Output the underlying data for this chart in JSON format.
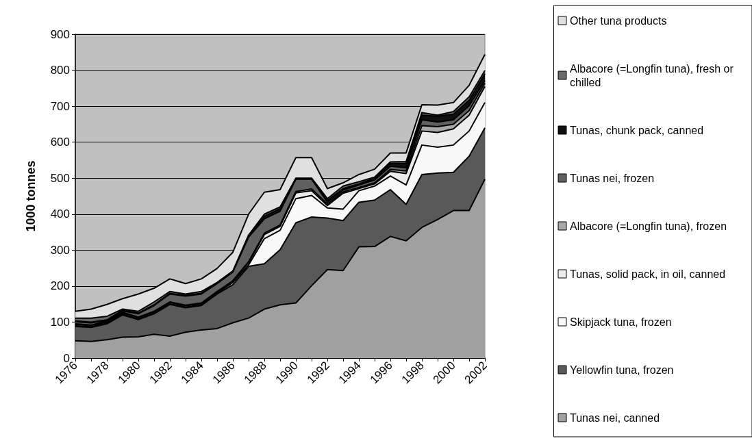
{
  "chart_data": {
    "type": "area",
    "stacked": true,
    "ylabel": "1000 tonnes",
    "categories": [
      "1976",
      null,
      "1978",
      null,
      "1980",
      null,
      "1982",
      null,
      "1984",
      null,
      "1986",
      null,
      "1988",
      null,
      "1990",
      null,
      "1992",
      null,
      "1994",
      null,
      "1996",
      null,
      "1998",
      null,
      "2000",
      null,
      "2002"
    ],
    "series": [
      {
        "name": "Tunas nei, canned",
        "color": "#a0a0a0",
        "values": [
          48,
          46,
          51,
          58,
          59,
          66,
          61,
          72,
          78,
          82,
          98,
          111,
          136,
          148,
          153,
          201,
          246,
          243,
          309,
          310,
          338,
          326,
          363,
          385,
          410,
          410,
          497
        ]
      },
      {
        "name": "Yellowfin tuna, frozen",
        "color": "#595959",
        "values": [
          40,
          39,
          44,
          62,
          48,
          57,
          88,
          68,
          68,
          96,
          106,
          144,
          126,
          153,
          223,
          191,
          143,
          139,
          124,
          129,
          130,
          101,
          147,
          129,
          106,
          151,
          143
        ]
      },
      {
        "name": "Skipjack tuna, frozen",
        "color": "#f8f8f8",
        "values": [
          2,
          2,
          2,
          2,
          2,
          2,
          2,
          2,
          2,
          2,
          6,
          4,
          70,
          54,
          67,
          60,
          28,
          32,
          32,
          39,
          38,
          54,
          82,
          72,
          76,
          70,
          70
        ]
      },
      {
        "name": "Tunas, solid pack, in oil, canned",
        "color": "#ececec",
        "values": [
          3,
          3,
          3,
          3,
          3,
          3,
          3,
          3,
          3,
          3,
          3,
          6,
          11,
          11,
          16,
          13,
          7,
          44,
          6,
          6,
          13,
          32,
          39,
          41,
          45,
          44,
          45
        ]
      },
      {
        "name": "Albacore (=Longfin tuna), frozen",
        "color": "#a8a8a8",
        "values": [
          2,
          2,
          2,
          2,
          2,
          2,
          2,
          2,
          2,
          2,
          2,
          3,
          4,
          4,
          4,
          5,
          4,
          4,
          3,
          3,
          5,
          7,
          15,
          16,
          13,
          13,
          9
        ]
      },
      {
        "name": "Tunas nei, frozen",
        "color": "#606060",
        "values": [
          6,
          6,
          2,
          4,
          9,
          16,
          22,
          25,
          25,
          22,
          24,
          68,
          40,
          38,
          34,
          27,
          5,
          5,
          7,
          8,
          9,
          9,
          16,
          13,
          12,
          13,
          7
        ]
      },
      {
        "name": "Tunas, chunk pack, canned",
        "color": "#101010",
        "values": [
          2,
          2,
          2,
          2,
          2,
          2,
          2,
          2,
          2,
          2,
          2,
          3,
          7,
          7,
          2,
          2,
          5,
          4,
          3,
          5,
          8,
          12,
          13,
          16,
          16,
          16,
          19
        ]
      },
      {
        "name": "Albacore (=Longfin tuna), fresh or chilled",
        "color": "#6a6a6a",
        "values": [
          8,
          11,
          10,
          3,
          5,
          8,
          5,
          4,
          5,
          1,
          1,
          3,
          6,
          5,
          1,
          1,
          5,
          7,
          6,
          3,
          4,
          5,
          7,
          3,
          7,
          9,
          9
        ]
      },
      {
        "name": "Other tuna products",
        "color": "#e0e0e0",
        "values": [
          19,
          25,
          33,
          29,
          48,
          38,
          35,
          29,
          35,
          39,
          52,
          58,
          61,
          48,
          57,
          57,
          28,
          9,
          20,
          22,
          25,
          24,
          22,
          28,
          25,
          32,
          45
        ]
      }
    ],
    "ylim": [
      0,
      900
    ],
    "yticks": [
      0,
      100,
      200,
      300,
      400,
      500,
      600,
      700,
      800,
      900
    ],
    "grid": "y",
    "legend": "right"
  }
}
